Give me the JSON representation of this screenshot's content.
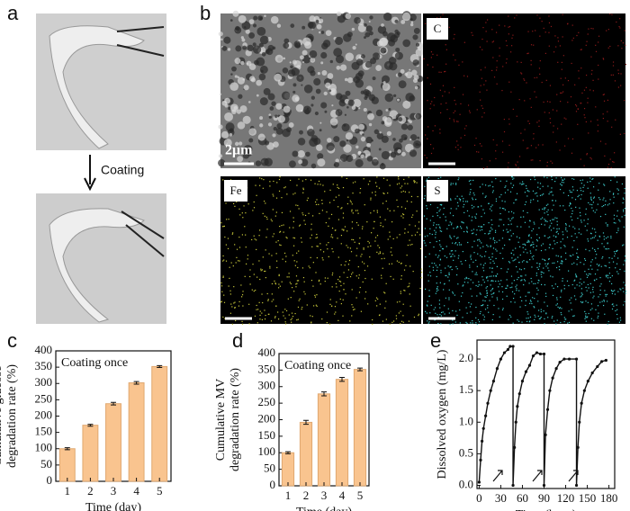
{
  "panels": {
    "a": {
      "label": "a",
      "annotation": "Coating"
    },
    "b": {
      "label": "b",
      "scale_bar": "2μm",
      "maps": [
        "C",
        "Fe",
        "S"
      ]
    }
  },
  "chart_data": [
    {
      "type": "bar",
      "label": "c",
      "annotation": "Coating once",
      "xlabel": "Time (day)",
      "ylabel": [
        "Cumulative glucose",
        "degradation rate (%)"
      ],
      "categories": [
        "1",
        "2",
        "3",
        "4",
        "5"
      ],
      "values": [
        100,
        172,
        238,
        302,
        352
      ],
      "errors": [
        3,
        3,
        4,
        4,
        3
      ],
      "color": "#f9c48f",
      "ylim": [
        0,
        400
      ],
      "yticks": [
        0,
        50,
        100,
        150,
        200,
        250,
        300,
        350,
        400
      ]
    },
    {
      "type": "bar",
      "label": "d",
      "annotation": "Coating once",
      "xlabel": "Time (day)",
      "ylabel": [
        "Cumulative MV",
        "degradation rate (%)"
      ],
      "categories": [
        "1",
        "2",
        "3",
        "4",
        "5"
      ],
      "values": [
        100,
        192,
        278,
        322,
        352
      ],
      "errors": [
        3,
        6,
        6,
        6,
        4
      ],
      "color": "#f9c48f",
      "ylim": [
        0,
        400
      ],
      "yticks": [
        0,
        50,
        100,
        150,
        200,
        250,
        300,
        350,
        400
      ]
    },
    {
      "type": "line",
      "label": "e",
      "xlabel": "Time (hour)",
      "ylabel": [
        "Dissolved  oxygen (mg/L)"
      ],
      "x": [
        0,
        2,
        4,
        6,
        9,
        12,
        16,
        20,
        25,
        30,
        35,
        40,
        43,
        47,
        47,
        49,
        51,
        53,
        56,
        60,
        65,
        70,
        75,
        80,
        85,
        90,
        90,
        92,
        95,
        98,
        102,
        107,
        112,
        118,
        125,
        135,
        135,
        137,
        139,
        142,
        146,
        151,
        157,
        164,
        170,
        176
      ],
      "values": [
        0.05,
        0.4,
        0.7,
        0.9,
        1.1,
        1.3,
        1.5,
        1.65,
        1.85,
        2.0,
        2.1,
        2.15,
        2.2,
        2.2,
        0,
        0.6,
        1.0,
        1.25,
        1.45,
        1.65,
        1.8,
        1.9,
        2.05,
        2.1,
        2.08,
        2.08,
        0,
        0.8,
        1.2,
        1.5,
        1.7,
        1.85,
        1.95,
        2.0,
        2.0,
        2.0,
        0,
        0.6,
        1.0,
        1.3,
        1.5,
        1.65,
        1.78,
        1.88,
        1.96,
        1.98
      ],
      "color": "#111111",
      "xlim": [
        -3,
        188
      ],
      "xticks": [
        0,
        30,
        60,
        90,
        120,
        150,
        180
      ],
      "ylim": [
        -0.05,
        2.3
      ],
      "yticks": [
        0.0,
        0.5,
        1.0,
        1.5,
        2.0
      ]
    }
  ]
}
